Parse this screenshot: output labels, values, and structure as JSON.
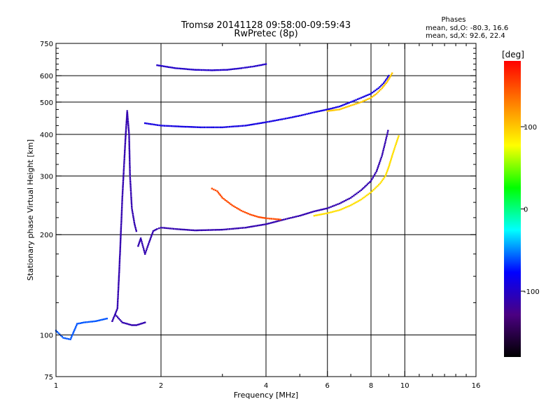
{
  "chart_data": {
    "type": "scatter",
    "title": "Tromsø 20141128 09:58:00-09:59:43",
    "subtitle": "RwPretec (8p)",
    "xlabel": "Frequency [MHz]",
    "ylabel": "Stationary phase Virtual Height [km]",
    "x_scale": "log2",
    "y_scale": "log",
    "xlim": [
      1,
      16
    ],
    "ylim": [
      75,
      750
    ],
    "xticks": [
      1,
      2,
      4,
      6,
      8,
      10,
      16
    ],
    "yticks": [
      75,
      100,
      200,
      300,
      400,
      500,
      600,
      750
    ],
    "grid_x": [
      2,
      4,
      6,
      8,
      10
    ],
    "grid_y": [
      100,
      200,
      300,
      400,
      500,
      600
    ],
    "phase_stats": {
      "title": "Phases",
      "line_o": "mean, sd,O: -80.3, 16.6",
      "line_x": "mean, sd,X:  92.6, 22.4"
    },
    "colorbar": {
      "label": "[deg]",
      "range": [
        -180,
        180
      ],
      "ticks": [
        100,
        0,
        -100
      ],
      "colors": [
        "#000000",
        "#4b0082",
        "#0000ff",
        "#00ffff",
        "#00ff00",
        "#ffff00",
        "#ff8000",
        "#ff0000"
      ]
    },
    "series": [
      {
        "points": [
          [
            1.72,
            185
          ],
          [
            1.75,
            195
          ],
          [
            1.8,
            175
          ],
          [
            1.85,
            190
          ],
          [
            1.9,
            205
          ],
          [
            1.95,
            208
          ],
          [
            2.0,
            210
          ],
          [
            2.2,
            208
          ],
          [
            2.5,
            206
          ],
          [
            3.0,
            207
          ],
          [
            3.5,
            210
          ],
          [
            4.0,
            215
          ],
          [
            4.5,
            222
          ],
          [
            5.0,
            228
          ],
          [
            5.5,
            235
          ],
          [
            6.0,
            240
          ],
          [
            6.5,
            248
          ],
          [
            7.0,
            258
          ],
          [
            7.5,
            272
          ],
          [
            8.0,
            290
          ],
          [
            8.3,
            310
          ],
          [
            8.6,
            345
          ],
          [
            8.8,
            380
          ],
          [
            8.95,
            410
          ]
        ],
        "phase": -110
      },
      {
        "points": [
          [
            5.5,
            228
          ],
          [
            6.0,
            232
          ],
          [
            6.5,
            237
          ],
          [
            7.0,
            245
          ],
          [
            7.5,
            255
          ],
          [
            8.0,
            268
          ],
          [
            8.5,
            285
          ],
          [
            8.8,
            300
          ],
          [
            9.0,
            320
          ],
          [
            9.2,
            345
          ],
          [
            9.4,
            370
          ],
          [
            9.6,
            395
          ]
        ],
        "phase": 90
      },
      {
        "points": [
          [
            2.8,
            275
          ],
          [
            2.9,
            270
          ],
          [
            3.0,
            258
          ],
          [
            3.2,
            245
          ],
          [
            3.4,
            236
          ],
          [
            3.6,
            230
          ],
          [
            3.8,
            226
          ],
          [
            4.0,
            224
          ],
          [
            4.2,
            223
          ],
          [
            4.4,
            222
          ]
        ],
        "phase": 150
      },
      {
        "points": [
          [
            1.8,
            432
          ],
          [
            2.0,
            425
          ],
          [
            2.3,
            422
          ],
          [
            2.6,
            420
          ],
          [
            3.0,
            420
          ],
          [
            3.5,
            425
          ],
          [
            4.0,
            435
          ],
          [
            4.5,
            445
          ],
          [
            5.0,
            455
          ],
          [
            5.5,
            466
          ],
          [
            6.0,
            475
          ],
          [
            6.5,
            485
          ],
          [
            7.0,
            500
          ],
          [
            7.5,
            515
          ],
          [
            8.0,
            530
          ],
          [
            8.4,
            550
          ],
          [
            8.7,
            570
          ],
          [
            9.0,
            600
          ]
        ],
        "phase": -90
      },
      {
        "points": [
          [
            6.0,
            470
          ],
          [
            6.5,
            475
          ],
          [
            7.0,
            488
          ],
          [
            7.5,
            500
          ],
          [
            8.0,
            515
          ],
          [
            8.3,
            530
          ],
          [
            8.6,
            550
          ],
          [
            8.9,
            575
          ],
          [
            9.2,
            610
          ]
        ],
        "phase": 100
      },
      {
        "points": [
          [
            1.95,
            645
          ],
          [
            2.2,
            632
          ],
          [
            2.5,
            625
          ],
          [
            2.8,
            623
          ],
          [
            3.1,
            625
          ],
          [
            3.4,
            632
          ],
          [
            3.7,
            640
          ],
          [
            4.0,
            650
          ]
        ],
        "phase": -100
      },
      {
        "points": [
          [
            1.45,
            110
          ],
          [
            1.5,
            120
          ],
          [
            1.52,
            160
          ],
          [
            1.55,
            260
          ],
          [
            1.58,
            380
          ],
          [
            1.6,
            470
          ],
          [
            1.62,
            400
          ],
          [
            1.63,
            300
          ],
          [
            1.65,
            240
          ],
          [
            1.68,
            215
          ],
          [
            1.7,
            205
          ]
        ],
        "phase": -110
      },
      {
        "points": [
          [
            1.48,
            115
          ],
          [
            1.55,
            109
          ],
          [
            1.6,
            108
          ],
          [
            1.65,
            107
          ],
          [
            1.7,
            107
          ],
          [
            1.75,
            108
          ],
          [
            1.8,
            109
          ]
        ],
        "phase": -110
      },
      {
        "points": [
          [
            1.0,
            103
          ],
          [
            1.05,
            98
          ],
          [
            1.1,
            97
          ],
          [
            1.15,
            108
          ],
          [
            1.2,
            109
          ],
          [
            1.3,
            110
          ],
          [
            1.4,
            112
          ]
        ],
        "phase": -60
      }
    ]
  }
}
